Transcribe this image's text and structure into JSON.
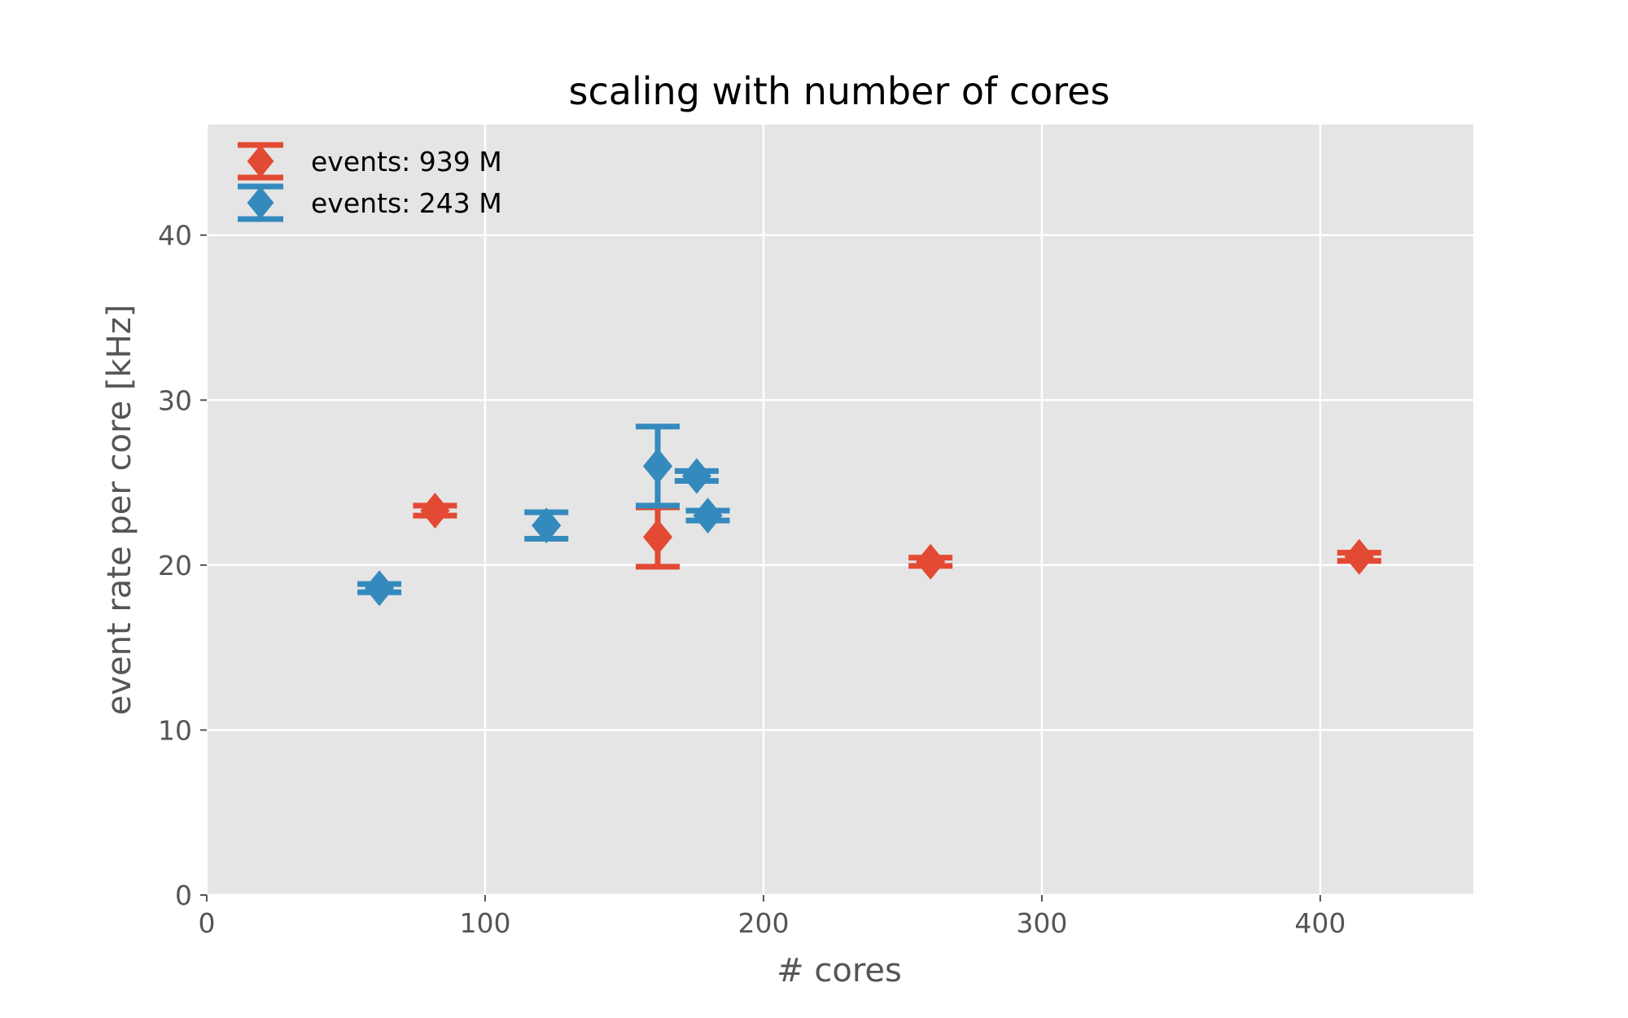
{
  "chart_data": {
    "type": "scatter",
    "title": "scaling with number of cores",
    "xlabel": "# cores",
    "ylabel": "event rate per core [kHz]",
    "xlim": [
      0,
      455
    ],
    "ylim": [
      0,
      46.7
    ],
    "xticks": [
      0,
      100,
      200,
      300,
      400
    ],
    "yticks": [
      0,
      10,
      20,
      30,
      40
    ],
    "grid": true,
    "legend_position": "top-left",
    "background": "#e5e5e5",
    "series": [
      {
        "name": "events: 939 M",
        "color": "#e24a33",
        "marker": "diamond",
        "points": [
          {
            "x": 82,
            "y": 23.3,
            "err": 0.3
          },
          {
            "x": 162,
            "y": 21.7,
            "err": 1.8
          },
          {
            "x": 260,
            "y": 20.2,
            "err": 0.25
          },
          {
            "x": 414,
            "y": 20.5,
            "err": 0.25
          }
        ]
      },
      {
        "name": "events: 243 M",
        "color": "#348abd",
        "marker": "diamond",
        "points": [
          {
            "x": 62,
            "y": 18.6,
            "err": 0.25
          },
          {
            "x": 122,
            "y": 22.4,
            "err": 0.8
          },
          {
            "x": 162,
            "y": 26.0,
            "err": 2.4
          },
          {
            "x": 176,
            "y": 25.4,
            "err": 0.3
          },
          {
            "x": 180,
            "y": 23.0,
            "err": 0.3
          }
        ]
      }
    ]
  }
}
